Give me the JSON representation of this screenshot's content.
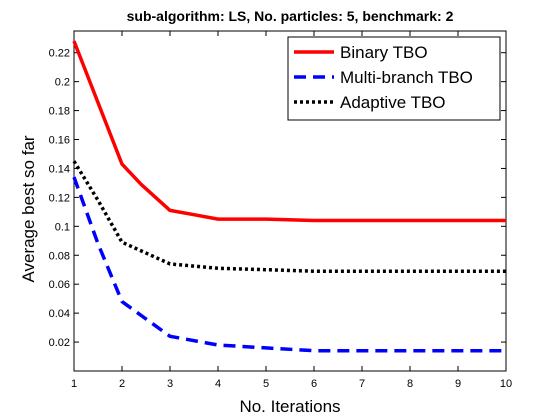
{
  "chart_data": {
    "type": "line",
    "title": "sub-algorithm: LS, No. particles: 5, benchmark: 2",
    "xlabel": "No. Iterations",
    "ylabel": "Average best so far",
    "xlim": [
      1,
      10
    ],
    "ylim": [
      0,
      0.235
    ],
    "x_ticks": [
      "1",
      "2",
      "3",
      "4",
      "5",
      "6",
      "7",
      "8",
      "9",
      "10"
    ],
    "y_ticks": [
      "0.02",
      "0.04",
      "0.06",
      "0.08",
      "0.1",
      "0.12",
      "0.14",
      "0.16",
      "0.18",
      "0.2",
      "0.22"
    ],
    "grid": false,
    "legend_position": "top-right",
    "series": [
      {
        "name": "Binary TBO",
        "color": "#ff0000",
        "style": "solid",
        "x": [
          1,
          2,
          2.4,
          3,
          3.5,
          4,
          5,
          6,
          7,
          8,
          9,
          10
        ],
        "y": [
          0.228,
          0.143,
          0.129,
          0.111,
          0.108,
          0.105,
          0.105,
          0.104,
          0.104,
          0.104,
          0.104,
          0.104
        ]
      },
      {
        "name": "Multi-branch TBO",
        "color": "#0000ff",
        "style": "dashed",
        "x": [
          1,
          1.5,
          2,
          3,
          4,
          5,
          6,
          7,
          8,
          9,
          10
        ],
        "y": [
          0.134,
          0.088,
          0.048,
          0.024,
          0.018,
          0.016,
          0.014,
          0.014,
          0.014,
          0.014,
          0.014
        ]
      },
      {
        "name": "Adaptive TBO",
        "color": "#000000",
        "style": "dotted",
        "x": [
          1,
          1.5,
          2,
          3,
          4,
          5,
          6,
          7,
          8,
          9,
          10
        ],
        "y": [
          0.145,
          0.118,
          0.089,
          0.074,
          0.071,
          0.07,
          0.069,
          0.069,
          0.069,
          0.069,
          0.069
        ]
      }
    ]
  }
}
